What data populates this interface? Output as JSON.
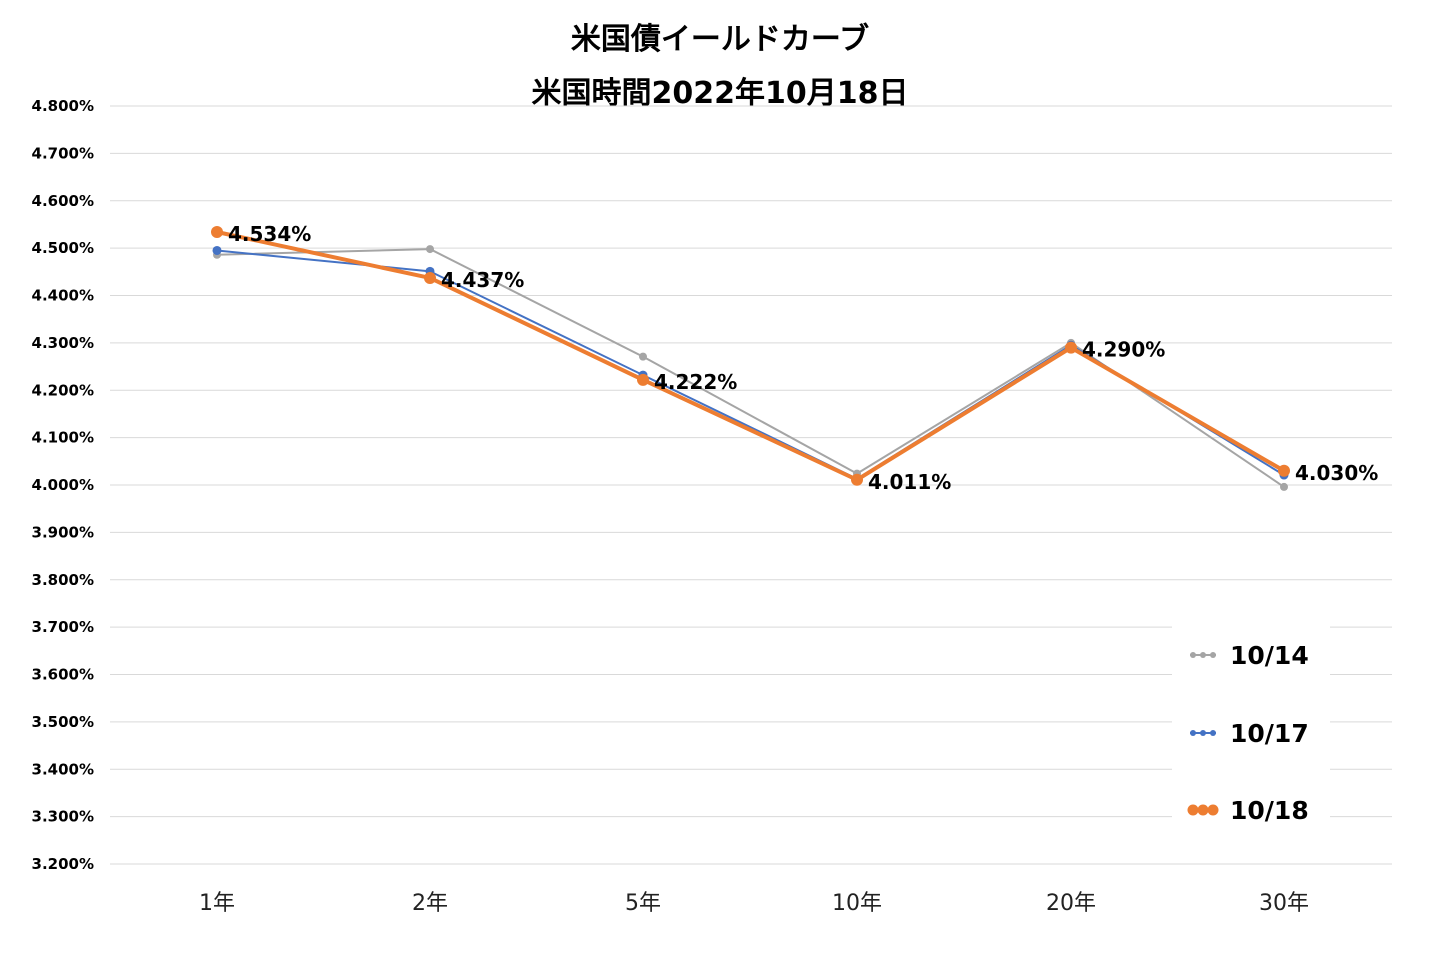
{
  "chart_data": {
    "type": "line",
    "title": [
      "米国債イールドカーブ",
      "米国時間2022年10月18日"
    ],
    "categories": [
      "1年",
      "2年",
      "5年",
      "10年",
      "20年",
      "30年"
    ],
    "y_ticks": [
      "4.800%",
      "4.700%",
      "4.600%",
      "4.500%",
      "4.400%",
      "4.300%",
      "4.200%",
      "4.100%",
      "4.000%",
      "3.900%",
      "3.800%",
      "3.700%",
      "3.600%",
      "3.500%",
      "3.400%",
      "3.300%",
      "3.200%"
    ],
    "ylim": [
      3.2,
      4.8
    ],
    "y_unit": "%",
    "grid": true,
    "legend_position": "bottom-right",
    "series": [
      {
        "name": "10/14",
        "color": "#a5a5a5",
        "values": [
          4.486,
          4.498,
          4.271,
          4.024,
          4.3,
          3.996
        ]
      },
      {
        "name": "10/17",
        "color": "#4472c4",
        "values": [
          4.495,
          4.451,
          4.232,
          4.013,
          4.295,
          4.021
        ]
      },
      {
        "name": "10/18",
        "color": "#ed7d31",
        "values": [
          4.534,
          4.437,
          4.222,
          4.011,
          4.29,
          4.03
        ]
      }
    ],
    "data_labels": [
      "4.534%",
      "4.437%",
      "4.222%",
      "4.011%",
      "4.290%",
      "4.030%"
    ]
  }
}
